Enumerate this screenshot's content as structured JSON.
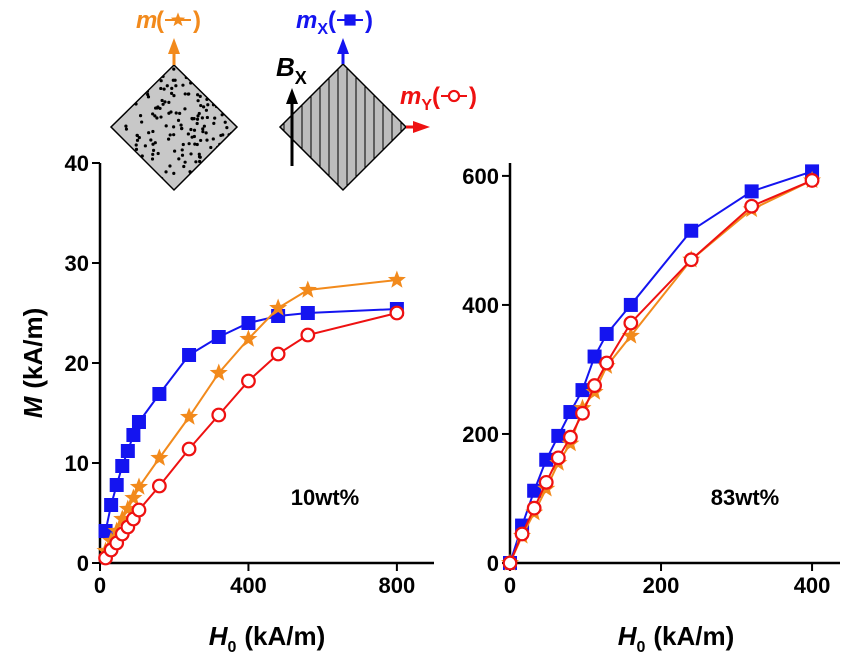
{
  "chart_data": [
    {
      "type": "line",
      "x": [
        15,
        30,
        45,
        60,
        75,
        90,
        105,
        160,
        240,
        320,
        400,
        480,
        560,
        800
      ],
      "xlim": [
        0,
        900
      ],
      "xticks": [
        0,
        400,
        800
      ],
      "ylim": [
        0,
        40
      ],
      "yticks": [
        0,
        10,
        20,
        30,
        40
      ],
      "xlabel": {
        "symbol": "H",
        "subscript": "0",
        "unit": "(kA/m)"
      },
      "ylabel": {
        "symbol": "M",
        "unit": "(kA/m)"
      },
      "annotation": "10wt%",
      "series": [
        {
          "name": "m",
          "subscript": "X",
          "color": "#1414f0",
          "marker": "square",
          "values": [
            3.2,
            5.8,
            7.8,
            9.7,
            11.2,
            12.8,
            14.1,
            16.9,
            20.8,
            22.6,
            24.0,
            24.7,
            25.0,
            25.4
          ]
        },
        {
          "name": "m",
          "color": "#f28a1c",
          "marker": "star",
          "values": [
            1.2,
            2.2,
            3.2,
            4.4,
            5.4,
            6.5,
            7.6,
            10.5,
            14.6,
            19.0,
            22.4,
            25.5,
            27.3,
            28.3
          ]
        },
        {
          "name": "m",
          "subscript": "Y",
          "color": "#ee1111",
          "marker": "circle",
          "values": [
            0.5,
            1.3,
            2.0,
            2.9,
            3.6,
            4.4,
            5.3,
            7.7,
            11.4,
            14.8,
            18.2,
            20.9,
            22.8,
            25.0
          ]
        }
      ]
    },
    {
      "type": "line",
      "x": [
        0,
        16,
        32,
        48,
        64,
        80,
        96,
        112,
        128,
        160,
        240,
        320,
        400
      ],
      "xlim": [
        0,
        437
      ],
      "xticks": [
        0,
        200,
        400
      ],
      "ylim": [
        0,
        620
      ],
      "yticks": [
        0,
        200,
        400,
        600
      ],
      "xlabel": {
        "symbol": "H",
        "subscript": "0",
        "unit": "(kA/m)"
      },
      "annotation": "83wt%",
      "series": [
        {
          "name": "m",
          "subscript": "X",
          "color": "#1414f0",
          "marker": "square",
          "values": [
            0,
            58,
            112,
            160,
            197,
            234,
            268,
            320,
            355,
            400,
            515,
            576,
            607
          ]
        },
        {
          "name": "m",
          "color": "#f28a1c",
          "marker": "star",
          "values": [
            0,
            42,
            78,
            115,
            155,
            185,
            240,
            265,
            305,
            352,
            470,
            548,
            593
          ]
        },
        {
          "name": "m",
          "subscript": "Y",
          "color": "#ee1111",
          "marker": "circle",
          "values": [
            0,
            45,
            85,
            125,
            163,
            195,
            232,
            275,
            310,
            372,
            470,
            553,
            593
          ]
        }
      ]
    }
  ],
  "diagram": {
    "bracket": [
      "(",
      ")"
    ],
    "field": {
      "symbol": "B",
      "subscript": "X"
    }
  }
}
